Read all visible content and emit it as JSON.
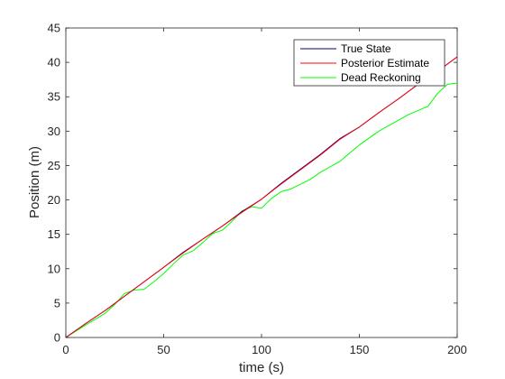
{
  "chart_data": {
    "type": "line",
    "title": "",
    "xlabel": "time (s)",
    "ylabel": "Position (m)",
    "xlim": [
      0,
      200
    ],
    "ylim": [
      0,
      45
    ],
    "xticks": [
      0,
      50,
      100,
      150,
      200
    ],
    "yticks": [
      0,
      5,
      10,
      15,
      20,
      25,
      30,
      35,
      40,
      45
    ],
    "grid": false,
    "legend_position": "top-right",
    "series": [
      {
        "name": "True State",
        "color": "#000080",
        "x": [
          0,
          10,
          20,
          30,
          40,
          50,
          60,
          70,
          80,
          90,
          100,
          110,
          120,
          130,
          140,
          150,
          160,
          170,
          180,
          190,
          200
        ],
        "y": [
          0,
          2.0,
          3.9,
          6.0,
          8.1,
          10.2,
          12.4,
          14.3,
          16.2,
          18.3,
          20.1,
          22.4,
          24.5,
          26.6,
          28.9,
          30.6,
          32.7,
          34.7,
          36.8,
          38.7,
          40.8
        ]
      },
      {
        "name": "Posterior Estimate",
        "color": "#ff0000",
        "x": [
          0,
          10,
          20,
          30,
          40,
          50,
          60,
          70,
          80,
          90,
          100,
          110,
          120,
          130,
          140,
          150,
          160,
          170,
          180,
          190,
          200
        ],
        "y": [
          0,
          2.0,
          3.9,
          6.0,
          8.1,
          10.2,
          12.3,
          14.3,
          16.2,
          18.2,
          20.1,
          22.3,
          24.4,
          26.5,
          28.8,
          30.6,
          32.7,
          34.7,
          36.8,
          38.7,
          40.8
        ]
      },
      {
        "name": "Dead Reckoning",
        "color": "#00ff00",
        "x": [
          0,
          10,
          20,
          25,
          30,
          35,
          40,
          45,
          50,
          55,
          60,
          65,
          70,
          75,
          80,
          85,
          90,
          95,
          100,
          105,
          110,
          115,
          120,
          125,
          130,
          135,
          140,
          145,
          150,
          155,
          160,
          165,
          170,
          175,
          180,
          185,
          190,
          195,
          200
        ],
        "y": [
          0,
          1.8,
          3.5,
          4.8,
          6.4,
          6.9,
          7.0,
          8.1,
          9.3,
          10.7,
          12.0,
          12.6,
          13.8,
          15.1,
          15.6,
          16.9,
          18.4,
          19.0,
          18.8,
          20.2,
          21.2,
          21.6,
          22.3,
          23.0,
          24.0,
          24.8,
          25.6,
          26.8,
          28.0,
          29.0,
          30.0,
          30.8,
          31.6,
          32.4,
          33.0,
          33.6,
          35.5,
          36.8,
          37.0
        ]
      }
    ]
  }
}
